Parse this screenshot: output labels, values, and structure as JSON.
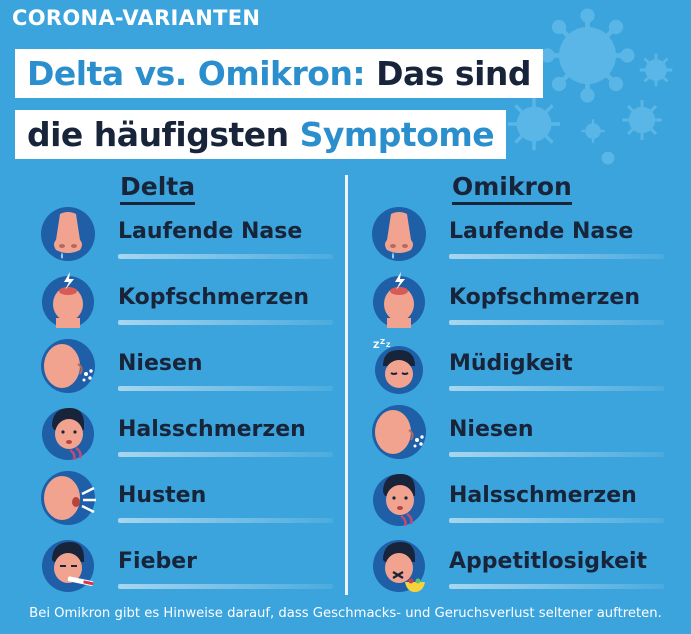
{
  "kicker": "CORONA-VARIANTEN",
  "title": {
    "line1_blue": "Delta vs. Omikron:",
    "line1_dark": " Das sind",
    "line2_dark": "die häufigsten ",
    "line2_blue": "Symptome"
  },
  "columns": {
    "delta": {
      "heading": "Delta",
      "items": [
        {
          "label": "Laufende Nase",
          "icon": "nose-icon"
        },
        {
          "label": "Kopfschmerzen",
          "icon": "headache-icon"
        },
        {
          "label": "Niesen",
          "icon": "sneeze-icon"
        },
        {
          "label": "Halsschmerzen",
          "icon": "sore-throat-icon"
        },
        {
          "label": "Husten",
          "icon": "cough-icon"
        },
        {
          "label": "Fieber",
          "icon": "fever-icon"
        }
      ]
    },
    "omikron": {
      "heading": "Omikron",
      "items": [
        {
          "label": "Laufende Nase",
          "icon": "nose-icon"
        },
        {
          "label": "Kopfschmerzen",
          "icon": "headache-icon"
        },
        {
          "label": "Müdigkeit",
          "icon": "fatigue-icon"
        },
        {
          "label": "Niesen",
          "icon": "sneeze-icon"
        },
        {
          "label": "Halsschmerzen",
          "icon": "sore-throat-icon"
        },
        {
          "label": "Appetitlosigkeit",
          "icon": "loss-of-appetite-icon"
        }
      ]
    }
  },
  "footer": "Bei Omikron gibt es Hinweise darauf, dass Geschmacks- und Geruchsverlust seltener auftreten.",
  "colors": {
    "background": "#3ca4dc",
    "accent_blue": "#2b8fcd",
    "dark_text": "#17243a",
    "skin": "#f2a38f",
    "icon_circle": "#1f5fa8"
  }
}
